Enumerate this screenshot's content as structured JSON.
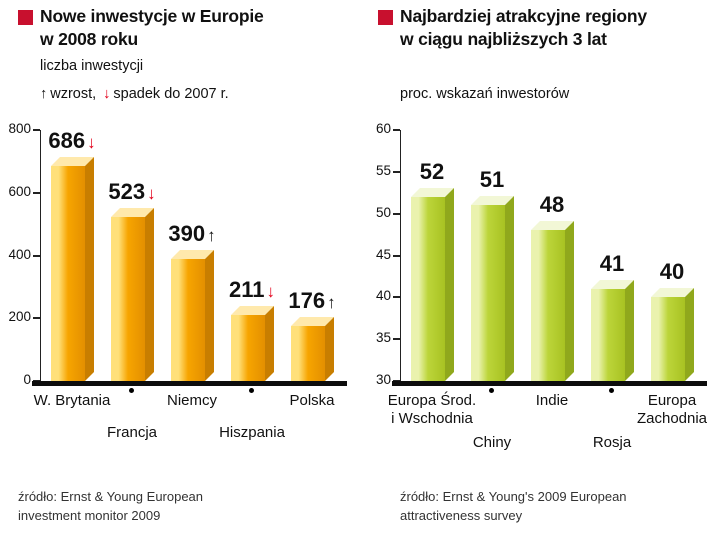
{
  "page": {
    "accent_red": "#c8102e",
    "up_symbol": "↑",
    "down_symbol": "↓",
    "arrow_up_color": "#111111",
    "arrow_down_color": "#e2001a"
  },
  "left": {
    "title_lines": [
      "Nowe inwestycje w Europie",
      "w 2008 roku"
    ],
    "subtitle": "liczba inwestycji",
    "legend_up_text": "wzrost,",
    "legend_down_text": "spadek do 2007 r.",
    "source_lines": [
      "źródło: Ernst & Young European",
      "investment monitor 2009"
    ],
    "bar_colors": {
      "light": "#ffe07a",
      "main": "#f7a500",
      "dark": "#e38f00",
      "side": "#c87e00",
      "top": "#ffe9ac"
    }
  },
  "right": {
    "title_lines": [
      "Najbardziej atrakcyjne regiony",
      "w ciągu najbliższych 3 lat"
    ],
    "subtitle": "proc. wskazań inwestorów",
    "source_lines": [
      "źródło: Ernst & Young's 2009 European",
      "attractiveness survey"
    ],
    "bar_colors": {
      "light": "#eaf2ae",
      "main": "#bcd53a",
      "dark": "#a8c222",
      "side": "#90a81c",
      "top": "#f2f7d6"
    }
  },
  "chart_data": [
    {
      "type": "bar",
      "title": "Nowe inwestycje w Europie w 2008 roku",
      "subtitle": "liczba inwestycji",
      "legend_note": "↑ wzrost, ↓ spadek do 2007 r.",
      "ylim": [
        0,
        800
      ],
      "yticks": [
        0,
        200,
        400,
        600,
        800
      ],
      "categories": [
        "W. Brytania",
        "Francja",
        "Niemcy",
        "Hiszpania",
        "Polska"
      ],
      "values": [
        686,
        523,
        390,
        211,
        176
      ],
      "trend_vs_2007": [
        "down",
        "down",
        "up",
        "down",
        "up"
      ],
      "category_labels": [
        {
          "lines": [
            "W. Brytania"
          ],
          "row": 0,
          "dot": false
        },
        {
          "lines": [
            "Francja"
          ],
          "row": 1,
          "dot": true
        },
        {
          "lines": [
            "Niemcy"
          ],
          "row": 0,
          "dot": false
        },
        {
          "lines": [
            "Hiszpania"
          ],
          "row": 1,
          "dot": true
        },
        {
          "lines": [
            "Polska"
          ],
          "row": 0,
          "dot": false
        }
      ],
      "grid": false,
      "legend_position": "top-left",
      "source": "źródło: Ernst & Young European investment monitor 2009"
    },
    {
      "type": "bar",
      "title": "Najbardziej atrakcyjne regiony w ciągu najbliższych 3 lat",
      "subtitle": "proc. wskazań inwestorów",
      "ylim": [
        30,
        60
      ],
      "yticks": [
        30,
        35,
        40,
        45,
        50,
        55,
        60
      ],
      "categories": [
        "Europa Środ. i Wschodnia",
        "Chiny",
        "Indie",
        "Rosja",
        "Europa Zachodnia"
      ],
      "values": [
        52,
        51,
        48,
        41,
        40
      ],
      "category_labels": [
        {
          "lines": [
            "Europa Środ.",
            "i Wschodnia"
          ],
          "row": 0,
          "dot": false
        },
        {
          "lines": [
            "Chiny"
          ],
          "row": 1,
          "dot": true
        },
        {
          "lines": [
            "Indie"
          ],
          "row": 0,
          "dot": false
        },
        {
          "lines": [
            "Rosja"
          ],
          "row": 1,
          "dot": true
        },
        {
          "lines": [
            "Europa",
            "Zachodnia"
          ],
          "row": 0,
          "dot": false
        }
      ],
      "grid": false,
      "source": "źródło: Ernst & Young's 2009 European attractiveness survey"
    }
  ]
}
